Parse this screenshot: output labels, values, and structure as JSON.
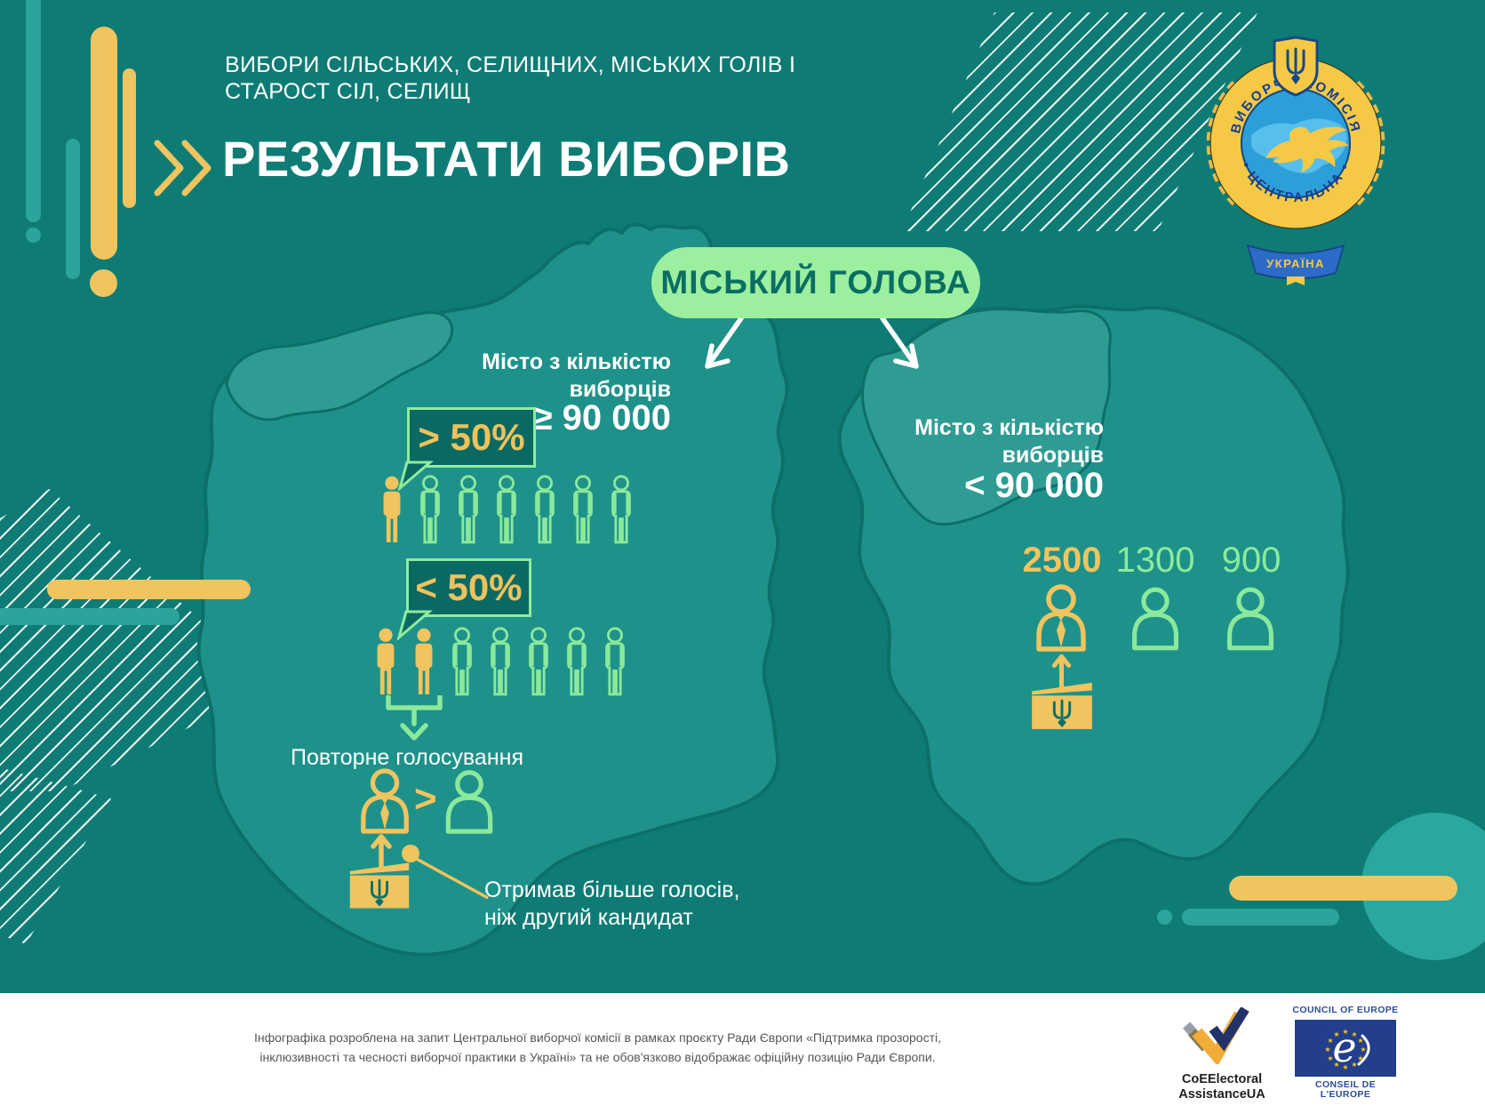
{
  "header": {
    "kicker_line1": "ВИБОРИ СІЛЬСЬКИХ, СЕЛИЩНИХ, МІСЬКИХ ГОЛІВ І",
    "kicker_line2": "СТАРОСТ СІЛ, СЕЛИЩ",
    "title": "РЕЗУЛЬТАТИ ВИБОРІВ"
  },
  "emblem": {
    "arc_top": "ВИБОРЧА      КОМІСІЯ",
    "arc_bottom": "•  ЦЕНТРАЛЬНА  •",
    "ribbon": "УКРАЇНА"
  },
  "badge": {
    "label": "МІСЬКИЙ ГОЛОВА"
  },
  "left_city": {
    "headline_line1": "Місто з кількістю",
    "headline_line2": "виборців",
    "threshold": "≥ 90 000",
    "over50": {
      "label": "> 50%",
      "filled": 1,
      "outline": 6
    },
    "under50": {
      "label": "< 50%",
      "filled": 2,
      "outline": 5
    },
    "runoff_label": "Повторне голосування",
    "comparison_sign": ">",
    "note_line1": "Отримав більше голосів,",
    "note_line2": "ніж другий кандидат"
  },
  "right_city": {
    "headline_line1": "Місто з кількістю",
    "headline_line2": "виборців",
    "threshold": "< 90 000",
    "votes": [
      {
        "value": "2500",
        "highlight": true
      },
      {
        "value": "1300",
        "highlight": false
      },
      {
        "value": "900",
        "highlight": false
      }
    ]
  },
  "footer": {
    "disclaimer_line1": "Інфографіка розроблена на запит Центральної виборчої комісії в рамках проєкту Ради Європи «Підтримка прозорості,",
    "disclaimer_line2": "інклюзивності та чесності виборчої практики в Україні» та не обов'язково відображає офіційну позицію Ради Європи.",
    "coe_electoral_line1": "CoEElectoral",
    "coe_electoral_line2": "AssistanceUA",
    "coe_top": "COUNCIL OF EUROPE",
    "coe_bottom": "CONSEIL DE L'EUROPE"
  },
  "colors": {
    "background": "#0E7C75",
    "map_fill": "#1E928A",
    "map_light": "#2E9C93",
    "accent_yellow": "#F0C45F",
    "accent_green": "#8BE99C",
    "pill_green": "#9BEF9E",
    "pill_text": "#0A6E63",
    "box_fill": "#0A6A63",
    "coe_blue": "#233E8B"
  }
}
